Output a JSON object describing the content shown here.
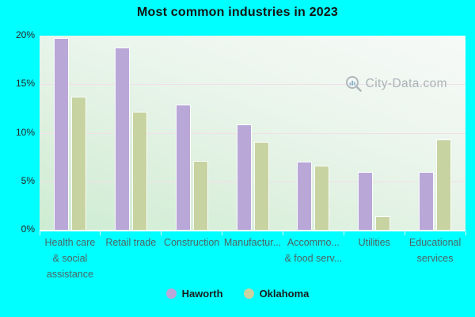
{
  "title": "Most common industries in 2023",
  "watermark": {
    "text": "City-Data.com",
    "icon": "magnifier-barchart-icon"
  },
  "colors": {
    "page_background": "#00ffff",
    "haworth": "#b9a7d8",
    "oklahoma": "#c7d3a1",
    "gridline": "#f1dfe9",
    "plot_top": "#f7faf8",
    "plot_bottom": "#cdecd2"
  },
  "y_axis": {
    "tick_labels": [
      "20%",
      "15%",
      "10%",
      "5%",
      "0%"
    ],
    "max": 20,
    "min": 0
  },
  "legend": [
    {
      "label": "Haworth",
      "color": "#b9a7d8"
    },
    {
      "label": "Oklahoma",
      "color": "#c7d3a1"
    }
  ],
  "chart_data": {
    "type": "bar",
    "title": "Most common industries in 2023",
    "categories": [
      "Health care & social assistance",
      "Retail trade",
      "Construction",
      "Manufactur...",
      "Accommo... & food serv...",
      "Utilities",
      "Educational services"
    ],
    "category_display_lines": [
      [
        "Health care",
        "& social",
        "assistance"
      ],
      [
        "Retail trade"
      ],
      [
        "Construction"
      ],
      [
        "Manufactur..."
      ],
      [
        "Accommo...",
        "& food serv..."
      ],
      [
        "Utilities"
      ],
      [
        "Educational",
        "services"
      ]
    ],
    "series": [
      {
        "name": "Haworth",
        "color": "#b9a7d8",
        "values": [
          19.7,
          18.7,
          12.8,
          10.8,
          6.9,
          5.9,
          5.9
        ]
      },
      {
        "name": "Oklahoma",
        "color": "#c7d3a1",
        "values": [
          13.6,
          12.1,
          7.0,
          9.0,
          6.5,
          1.3,
          9.2
        ]
      }
    ],
    "ylabel": "",
    "xlabel": "",
    "ylim": [
      0,
      20
    ],
    "ytick_step": 5,
    "grid": true,
    "legend_position": "bottom"
  }
}
